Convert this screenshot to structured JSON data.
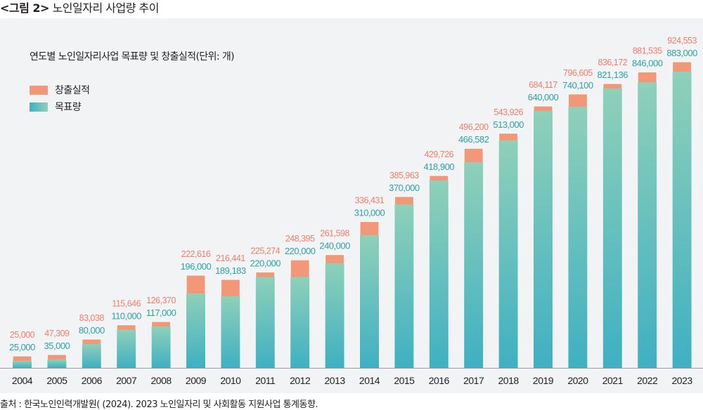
{
  "figure": {
    "label": "<그림 2>",
    "title": "노인일자리 사업량 추이"
  },
  "source": "출처 : 한국노인인력개발원( (2024). 2023 노인일자리 및 사회활동 지원사업 통계동향.",
  "colors": {
    "actual": "#f29878",
    "actual_label": "#ef7f6a",
    "target_top": "#8fd0b9",
    "target_bottom": "#3fb0c2",
    "target_label": "#2aa3a6",
    "axis": "#9a9a9a"
  },
  "chart_data": {
    "type": "bar",
    "stacked": true,
    "title": "연도별 노인일자리사업 목표량 및 창출실적(단위: 개)",
    "xlabel": "",
    "ylabel": "",
    "unit": "개",
    "legend": {
      "placement": "top-left",
      "entries": [
        "창출실적",
        "목표량"
      ]
    },
    "grid": false,
    "categories": [
      "2004",
      "2005",
      "2006",
      "2007",
      "2008",
      "2009",
      "2010",
      "2011",
      "2012",
      "2013",
      "2014",
      "2015",
      "2016",
      "2017",
      "2018",
      "2019",
      "2020",
      "2021",
      "2022",
      "2023"
    ],
    "series": [
      {
        "name": "창출실적",
        "values": [
          25000,
          47309,
          83038,
          115646,
          126370,
          222616,
          216441,
          225274,
          248395,
          261598,
          336431,
          385963,
          429726,
          496200,
          543926,
          684117,
          796605,
          836172,
          881535,
          924553
        ],
        "labels": [
          "25,000",
          "47,309",
          "83,038",
          "115,646",
          "126,370",
          "222,616",
          "216,441",
          "225,274",
          "248,395",
          "261,598",
          "336,431",
          "385,963",
          "429,726",
          "496,200",
          "543,926",
          "684,117",
          "796,605",
          "836,172",
          "881,535",
          "924,553"
        ]
      },
      {
        "name": "목표량",
        "values": [
          25000,
          35000,
          80000,
          110000,
          117000,
          196000,
          189183,
          220000,
          220000,
          240000,
          310000,
          370000,
          418900,
          466582,
          513000,
          640000,
          740100,
          821136,
          846000,
          883000
        ],
        "labels": [
          "25,000",
          "35,000",
          "80,000",
          "110,000",
          "117,000",
          "196,000",
          "189,183",
          "220,000",
          "220,000",
          "240,000",
          "310,000",
          "370,000",
          "418,900",
          "466,582",
          "513,000",
          "640,000",
          "740,100",
          "821,136",
          "846,000",
          "883,000"
        ]
      }
    ]
  }
}
